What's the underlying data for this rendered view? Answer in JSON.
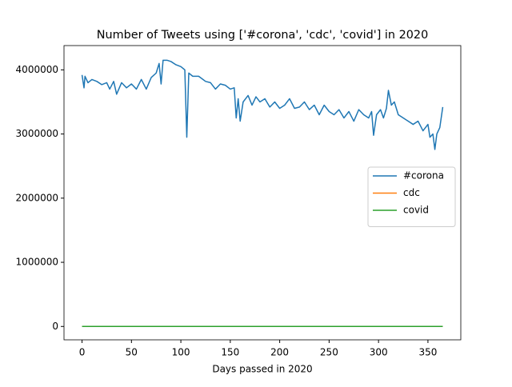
{
  "chart_data": {
    "type": "line",
    "title": "Number of Tweets using ['#corona', 'cdc', 'covid'] in 2020",
    "x_label": "Days passed in 2020",
    "x": [
      0,
      2,
      3,
      6,
      10,
      15,
      20,
      25,
      28,
      32,
      35,
      40,
      45,
      50,
      55,
      60,
      65,
      70,
      75,
      78,
      80,
      82,
      86,
      90,
      95,
      100,
      104,
      106,
      108,
      112,
      118,
      125,
      130,
      135,
      140,
      145,
      150,
      154,
      156,
      158,
      160,
      163,
      168,
      172,
      176,
      180,
      185,
      190,
      195,
      200,
      205,
      210,
      215,
      220,
      225,
      230,
      235,
      240,
      245,
      250,
      255,
      260,
      265,
      270,
      275,
      280,
      285,
      290,
      293,
      295,
      298,
      302,
      305,
      308,
      310,
      313,
      316,
      320,
      325,
      330,
      335,
      340,
      345,
      350,
      352,
      355,
      357,
      359,
      362,
      365
    ],
    "series": [
      {
        "name": "#corona",
        "color": "#1f77b4",
        "values": [
          3920000,
          3720000,
          3900000,
          3800000,
          3850000,
          3820000,
          3770000,
          3800000,
          3700000,
          3820000,
          3620000,
          3800000,
          3720000,
          3780000,
          3700000,
          3850000,
          3700000,
          3880000,
          3950000,
          4100000,
          3780000,
          4150000,
          4150000,
          4130000,
          4080000,
          4050000,
          4000000,
          2950000,
          3950000,
          3900000,
          3900000,
          3820000,
          3800000,
          3700000,
          3780000,
          3760000,
          3700000,
          3720000,
          3250000,
          3550000,
          3200000,
          3500000,
          3600000,
          3450000,
          3580000,
          3500000,
          3550000,
          3420000,
          3500000,
          3400000,
          3450000,
          3550000,
          3400000,
          3420000,
          3500000,
          3380000,
          3450000,
          3300000,
          3450000,
          3350000,
          3300000,
          3380000,
          3250000,
          3350000,
          3200000,
          3380000,
          3300000,
          3250000,
          3350000,
          2980000,
          3300000,
          3380000,
          3250000,
          3400000,
          3680000,
          3450000,
          3500000,
          3300000,
          3250000,
          3200000,
          3150000,
          3200000,
          3050000,
          3150000,
          2950000,
          3000000,
          2760000,
          3000000,
          3100000,
          3420000
        ]
      },
      {
        "name": "cdc",
        "color": "#ff7f0e",
        "values": [
          0,
          0,
          0,
          0,
          0,
          0,
          0,
          0,
          0,
          0,
          0,
          0,
          0,
          0,
          0,
          0,
          0,
          0,
          0,
          0,
          0,
          0,
          0,
          0,
          0,
          0,
          0,
          0,
          0,
          0,
          0,
          0,
          0,
          0,
          0,
          0,
          0,
          0,
          0,
          0,
          0,
          0,
          0,
          0,
          0,
          0,
          0,
          0,
          0,
          0,
          0,
          0,
          0,
          0,
          0,
          0,
          0,
          0,
          0,
          0,
          0,
          0,
          0,
          0,
          0,
          0,
          0,
          0,
          0,
          0,
          0,
          0,
          0,
          0,
          0,
          0,
          0,
          0,
          0,
          0,
          0,
          0,
          0,
          0,
          0,
          0,
          0,
          0,
          0,
          0
        ]
      },
      {
        "name": "covid",
        "color": "#2ca02c",
        "values": [
          0,
          0,
          0,
          0,
          0,
          0,
          0,
          0,
          0,
          0,
          0,
          0,
          0,
          0,
          0,
          0,
          0,
          0,
          0,
          0,
          0,
          0,
          0,
          0,
          0,
          0,
          0,
          0,
          0,
          0,
          0,
          0,
          0,
          0,
          0,
          0,
          0,
          0,
          0,
          0,
          0,
          0,
          0,
          0,
          0,
          0,
          0,
          0,
          0,
          0,
          0,
          0,
          0,
          0,
          0,
          0,
          0,
          0,
          0,
          0,
          0,
          0,
          0,
          0,
          0,
          0,
          0,
          0,
          0,
          0,
          0,
          0,
          0,
          0,
          0,
          0,
          0,
          0,
          0,
          0,
          0,
          0,
          0,
          0,
          0,
          0,
          0,
          0,
          0,
          0
        ]
      }
    ],
    "xlim": [
      -18.25,
      383.25
    ],
    "xticks": [
      0,
      50,
      100,
      150,
      200,
      250,
      300,
      350
    ],
    "ylim": [
      -208500,
      4378500
    ],
    "yticks": [
      0,
      1000000,
      2000000,
      3000000,
      4000000
    ],
    "legend": "right",
    "grid": false
  }
}
